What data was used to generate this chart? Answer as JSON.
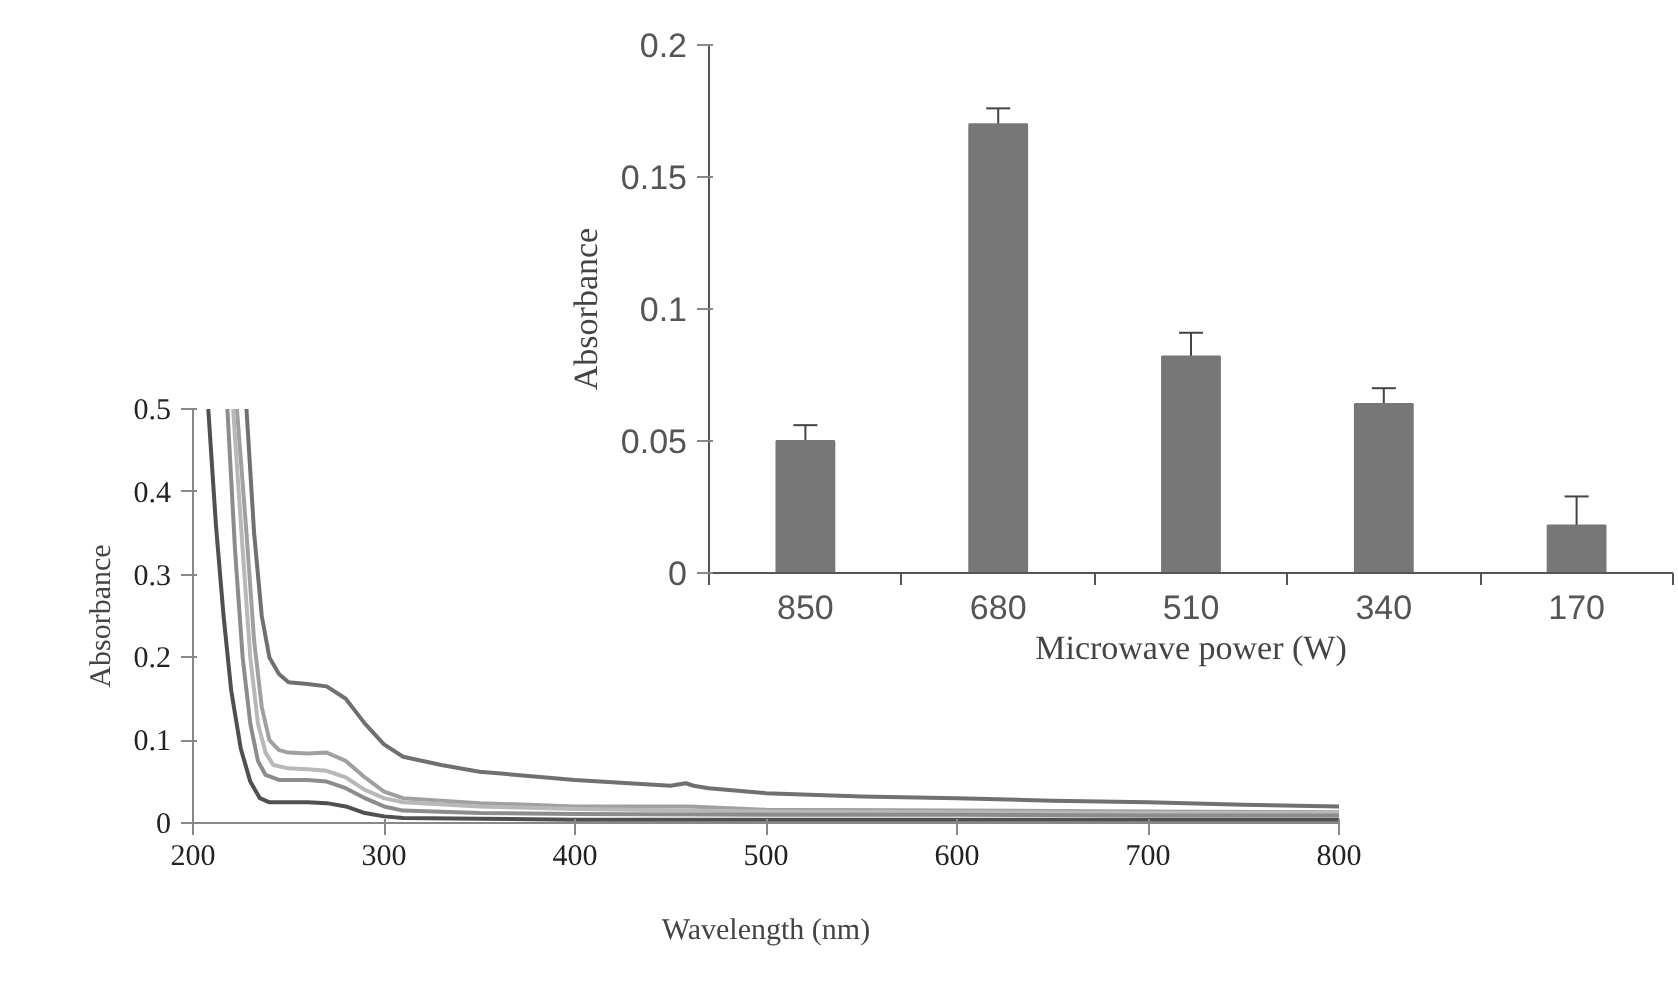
{
  "chart_data": [
    {
      "type": "line",
      "xlabel": "Wavelength (nm)",
      "ylabel": "Absorbance",
      "xlim": [
        200,
        800
      ],
      "ylim": [
        0,
        0.5
      ],
      "xticks": [
        200,
        300,
        400,
        500,
        600,
        700,
        800
      ],
      "yticks": [
        0,
        0.1,
        0.2,
        0.3,
        0.4,
        0.5
      ],
      "series": [
        {
          "color": "#707070",
          "x": [
            228,
            232,
            236,
            240,
            245,
            250,
            260,
            270,
            280,
            290,
            300,
            310,
            330,
            350,
            400,
            450,
            458,
            462,
            470,
            500,
            550,
            600,
            650,
            700,
            750,
            800
          ],
          "values": [
            0.5,
            0.35,
            0.25,
            0.2,
            0.18,
            0.17,
            0.168,
            0.165,
            0.15,
            0.12,
            0.095,
            0.08,
            0.07,
            0.062,
            0.052,
            0.045,
            0.048,
            0.045,
            0.042,
            0.036,
            0.032,
            0.03,
            0.027,
            0.025,
            0.022,
            0.02
          ]
        },
        {
          "color": "#a0a0a0",
          "x": [
            223,
            228,
            232,
            236,
            240,
            245,
            250,
            260,
            270,
            280,
            290,
            300,
            310,
            350,
            400,
            460,
            500,
            600,
            700,
            800
          ],
          "values": [
            0.5,
            0.35,
            0.22,
            0.14,
            0.1,
            0.088,
            0.085,
            0.084,
            0.085,
            0.075,
            0.055,
            0.038,
            0.03,
            0.024,
            0.02,
            0.02,
            0.016,
            0.015,
            0.014,
            0.013
          ]
        },
        {
          "color": "#b8b8b8",
          "x": [
            221,
            226,
            230,
            234,
            238,
            242,
            250,
            260,
            270,
            280,
            290,
            300,
            310,
            350,
            400,
            500,
            600,
            700,
            800
          ],
          "values": [
            0.5,
            0.33,
            0.2,
            0.12,
            0.085,
            0.07,
            0.066,
            0.065,
            0.063,
            0.055,
            0.04,
            0.03,
            0.025,
            0.02,
            0.017,
            0.014,
            0.013,
            0.012,
            0.012
          ]
        },
        {
          "color": "#8c8c8c",
          "x": [
            218,
            222,
            226,
            230,
            234,
            238,
            245,
            260,
            270,
            280,
            290,
            300,
            310,
            350,
            400,
            500,
            600,
            700,
            800
          ],
          "values": [
            0.5,
            0.33,
            0.2,
            0.12,
            0.075,
            0.058,
            0.052,
            0.052,
            0.05,
            0.042,
            0.03,
            0.02,
            0.015,
            0.012,
            0.011,
            0.01,
            0.01,
            0.009,
            0.009
          ]
        },
        {
          "color": "#505050",
          "x": [
            208,
            212,
            216,
            220,
            225,
            230,
            235,
            240,
            260,
            270,
            280,
            290,
            300,
            310,
            350,
            400,
            500,
            600,
            700,
            800
          ],
          "values": [
            0.5,
            0.36,
            0.25,
            0.16,
            0.09,
            0.05,
            0.03,
            0.025,
            0.025,
            0.024,
            0.02,
            0.012,
            0.008,
            0.006,
            0.005,
            0.004,
            0.004,
            0.004,
            0.004,
            0.004
          ]
        }
      ],
      "grid": false
    },
    {
      "type": "bar",
      "xlabel": "Microwave power (W)",
      "ylabel": "Absorbance",
      "categories": [
        "850",
        "680",
        "510",
        "340",
        "170"
      ],
      "values": [
        0.05,
        0.17,
        0.082,
        0.064,
        0.018
      ],
      "errors": [
        0.006,
        0.006,
        0.009,
        0.006,
        0.011
      ],
      "color": "#777777",
      "ylim": [
        0,
        0.2
      ],
      "yticks": [
        0,
        0.05,
        0.1,
        0.15,
        0.2
      ],
      "grid": false
    }
  ]
}
